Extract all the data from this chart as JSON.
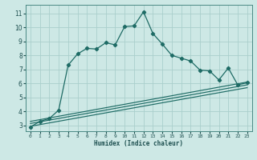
{
  "xlabel": "Humidex (Indice chaleur)",
  "ylabel": "",
  "background_color": "#cde8e5",
  "plot_bg_color": "#cde8e5",
  "grid_color": "#aacfcc",
  "line_color": "#1e6b65",
  "xlim": [
    -0.5,
    23.5
  ],
  "ylim": [
    2.6,
    11.6
  ],
  "xticks": [
    0,
    1,
    2,
    3,
    4,
    5,
    6,
    7,
    8,
    9,
    10,
    11,
    12,
    13,
    14,
    15,
    16,
    17,
    18,
    19,
    20,
    21,
    22,
    23
  ],
  "yticks": [
    3,
    4,
    5,
    6,
    7,
    8,
    9,
    10,
    11
  ],
  "curve1_x": [
    0,
    1,
    2,
    3,
    4,
    5,
    6,
    7,
    8,
    9,
    10,
    11,
    12,
    13,
    14,
    15,
    16,
    17,
    18,
    19,
    20,
    21,
    22,
    23
  ],
  "curve1_y": [
    2.9,
    3.3,
    3.5,
    4.1,
    7.3,
    8.1,
    8.5,
    8.45,
    8.9,
    8.75,
    10.05,
    10.1,
    11.1,
    9.55,
    8.8,
    8.0,
    7.8,
    7.6,
    6.95,
    6.9,
    6.25,
    7.1,
    5.9,
    6.05
  ],
  "curve2_x": [
    0,
    23
  ],
  "curve2_y": [
    3.3,
    6.1
  ],
  "curve3_x": [
    0,
    23
  ],
  "curve3_y": [
    3.15,
    5.9
  ],
  "curve4_x": [
    0,
    23
  ],
  "curve4_y": [
    2.95,
    5.7
  ]
}
